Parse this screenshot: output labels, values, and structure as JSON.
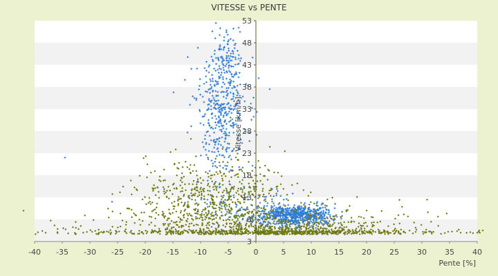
{
  "chart_data": {
    "type": "scatter",
    "title": "VITESSE vs PENTE",
    "xlabel": "Pente [%]",
    "ylabel": "Vitesse [km/h]",
    "xlim": [
      -40,
      40
    ],
    "ylim": [
      3,
      53
    ],
    "x_ticks": [
      "-40",
      "-35",
      "-30",
      "-25",
      "-20",
      "-15",
      "-10",
      "-5",
      "0",
      "5",
      "10",
      "15",
      "20",
      "25",
      "30",
      "35",
      "40"
    ],
    "y_ticks": [
      "53",
      "48",
      "43",
      "38",
      "33",
      "28",
      "23",
      "18",
      "13",
      "8",
      "3"
    ],
    "grid": "horizontal alternating bands",
    "plot_background": [
      "#ffffff",
      "#f2f2f2"
    ],
    "series": [
      {
        "color": "#2e7bd6",
        "marker": "plus",
        "clusters": [
          {
            "x_mean": -6,
            "x_sd": 2.2,
            "y_mean": 33,
            "y_sd": 8,
            "count": 420
          },
          {
            "x_mean": -5.5,
            "x_sd": 1.2,
            "y_mean": 46,
            "y_sd": 3,
            "count": 70
          },
          {
            "x_mean": 7,
            "x_sd": 3.5,
            "y_mean": 9,
            "y_sd": 1.2,
            "count": 650
          },
          {
            "x_mean": -2,
            "x_sd": 5,
            "y_mean": 10,
            "y_sd": 3,
            "count": 110
          }
        ],
        "points": [
          [
            -34.5,
            22
          ],
          [
            2.5,
            37.5
          ],
          [
            0.5,
            40
          ],
          [
            -26,
            12
          ]
        ]
      },
      {
        "color": "#6e7a10",
        "marker": "diamond",
        "clusters": [
          {
            "x_mean": -8,
            "x_sd": 7,
            "y_mean": 12,
            "y_sd": 5,
            "count": 650
          },
          {
            "x_mean": 0,
            "x_sd": 17,
            "y_mean": 6,
            "y_sd": 2.5,
            "count": 450
          },
          {
            "x_mean": 8,
            "x_sd": 7,
            "y_mean": 5,
            "y_sd": 1.5,
            "count": 350
          },
          {
            "x_mean": 0,
            "x_sd": 20,
            "y_mean": 5.2,
            "y_sd": 0.3,
            "count": 220
          }
        ],
        "points": [
          [
            -42,
            10
          ],
          [
            40,
            5
          ],
          [
            41,
            5.5
          ],
          [
            -38,
            5
          ],
          [
            37,
            5
          ]
        ]
      }
    ]
  }
}
